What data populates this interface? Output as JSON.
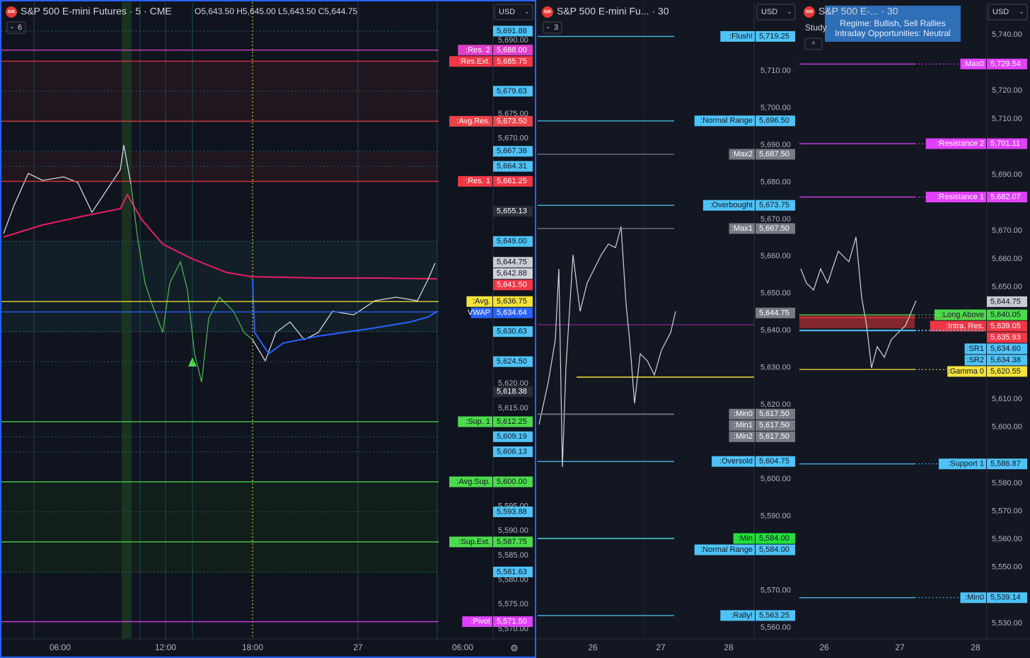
{
  "panels": [
    {
      "badge": "500",
      "title": "S&P 500 E-mini Futures · 5 · CME",
      "ohlc": "O5,643.50 H5,645.00 L5,643.50 C5,644.75",
      "currency": "USD",
      "collapse": "6",
      "axis_ticks": [
        "5,690.00",
        "5,675.00",
        "5,670.00",
        "5,620.00",
        "5,615.00",
        "5,595.00",
        "5,590.00",
        "5,585.00",
        "5,580.00",
        "5,575.00",
        "5,570.00"
      ],
      "levels": [
        {
          "price": "5,691.88",
          "color": "#4fc3f7"
        },
        {
          "tag": ":Res. 2",
          "price": "5,688.00",
          "color": "#e040c8"
        },
        {
          "tag": ":Res.Ext.",
          "price": "5,685.75",
          "color": "#f23645"
        },
        {
          "price": "5,679.63",
          "color": "#4fc3f7"
        },
        {
          "tag": ":Avg.Res.",
          "price": "5,673.50",
          "color": "#e8434a"
        },
        {
          "price": "5,667.38",
          "color": "#4fc3f7"
        },
        {
          "price": "5,664.31",
          "color": "#4fc3f7"
        },
        {
          "tag": ":Res. 1",
          "price": "5,661.25",
          "color": "#f23645"
        },
        {
          "price": "5,655.13",
          "color": "#2a2e39"
        },
        {
          "price": "5,649.00",
          "color": "#4fc3f7"
        },
        {
          "price": "5,644.75",
          "color": "#c8cbd2"
        },
        {
          "price": "5,642.88",
          "color": "#d1d4dc"
        },
        {
          "price": "5,641.50",
          "color": "#f23645"
        },
        {
          "tag": ":Avg.",
          "price": "5,636.75",
          "color": "#f5e33b"
        },
        {
          "tag": "VWAP",
          "price": "5,634.64",
          "color": "#2962ff"
        },
        {
          "price": "5,630.63",
          "color": "#4fc3f7"
        },
        {
          "price": "5,624.50",
          "color": "#4fc3f7"
        },
        {
          "price": "5,618.38",
          "color": "#2a2e39"
        },
        {
          "tag": ":Sup. 1",
          "price": "5,612.25",
          "color": "#4cdb4c"
        },
        {
          "price": "5,609.19",
          "color": "#4fc3f7"
        },
        {
          "price": "5,606.13",
          "color": "#4fc3f7"
        },
        {
          "tag": ":Avg.Sup.",
          "price": "5,600.00",
          "color": "#4cdb4c"
        },
        {
          "price": "5,593.88",
          "color": "#4fc3f7"
        },
        {
          "tag": ":Sup.Ext.",
          "price": "5,587.75",
          "color": "#4cdb4c"
        },
        {
          "price": "5,581.63",
          "color": "#4fc3f7"
        },
        {
          "tag": ":Pivot",
          "price": "5,571.50",
          "color": "#e040fb"
        }
      ],
      "time_labels": [
        "06:00",
        "12:00",
        "18:00",
        "27",
        "06:00"
      ]
    },
    {
      "badge": "500",
      "title": "S&P 500 E-mini Fu... · 30",
      "currency": "USD",
      "collapse": "3",
      "axis_ticks": [
        "5,710.00",
        "5,700.00",
        "5,690.00",
        "5,680.00",
        "5,670.00",
        "5,660.00",
        "5,650.00",
        "5,640.00",
        "5,630.00",
        "5,620.00",
        "5,600.00",
        "5,590.00",
        "5,570.00",
        "5,560.00"
      ],
      "levels": [
        {
          "tag": ":Flush!",
          "price": "5,719.25",
          "color": "#4fc3f7"
        },
        {
          "tag": ":Normal Range",
          "price": "5,696.50",
          "color": "#4fc3f7"
        },
        {
          "tag": ":Max2",
          "price": "5,687.50",
          "color": "#787b86"
        },
        {
          "tag": ":Overbought",
          "price": "5,673.75",
          "color": "#4fc3f7"
        },
        {
          "tag": ":Max1",
          "price": "5,667.50",
          "color": "#787b86"
        },
        {
          "price": "5,644.75",
          "color": "#787b86"
        },
        {
          "tag": ":Min0",
          "price": "5,617.50",
          "color": "#787b86"
        },
        {
          "tag": ":Min1",
          "price": "5,617.50",
          "color": "#787b86"
        },
        {
          "tag": ":Min2",
          "price": "5,617.50",
          "color": "#787b86"
        },
        {
          "tag": ":Oversold",
          "price": "5,604.75",
          "color": "#4fc3f7"
        },
        {
          "tag": ":Min",
          "price": "5,584.00",
          "color": "#22e03a"
        },
        {
          "tag": ":Normal Range",
          "price": "5,584.00",
          "color": "#4fc3f7"
        },
        {
          "tag": ":Rally!",
          "price": "5,563.25",
          "color": "#4fc3f7"
        }
      ],
      "time_labels": [
        "26",
        "27",
        "28"
      ]
    },
    {
      "badge": "500",
      "title": "S&P 500 E-...  · 30",
      "currency": "USD",
      "study": "Study",
      "tooltip": [
        "Regime: Bullish, Sell Rallies",
        "Intraday Opportunities: Neutral"
      ],
      "axis_ticks": [
        "5,740.00",
        "5,720.00",
        "5,710.00",
        "5,690.00",
        "5,670.00",
        "5,660.00",
        "5,650.00",
        "5,610.00",
        "5,600.00",
        "5,580.00",
        "5,570.00",
        "5,560.00",
        "5,550.00",
        "5,530.00"
      ],
      "levels": [
        {
          "tag": ":Max0",
          "price": "5,729.54",
          "color": "#e040fb"
        },
        {
          "tag": ":Resistance 2",
          "price": "5,701.11",
          "color": "#e040fb"
        },
        {
          "tag": ":Resistance 1",
          "price": "5,682.07",
          "color": "#e040fb"
        },
        {
          "price": "5,644.75",
          "color": "#c8cbd2"
        },
        {
          "tag": ":Long Above",
          "price": "5,640.05",
          "color": "#4cdb4c"
        },
        {
          "tag": ":Intra. Res.",
          "price": "5,639.05",
          "color": "#f23645"
        },
        {
          "price": "5,635.93",
          "color": "#f23645"
        },
        {
          "tag": ":SR1",
          "price": "5,634.60",
          "color": "#4fc3f7"
        },
        {
          "tag": ":SR2",
          "price": "5,634.38",
          "color": "#4fc3f7"
        },
        {
          "tag": ":Gamma 0",
          "price": "5,620.55",
          "color": "#f5e33b"
        },
        {
          "tag": ":Support 1",
          "price": "5,586.87",
          "color": "#4fc3f7"
        },
        {
          "tag": ":Min0",
          "price": "5,539.14",
          "color": "#4fc3f7"
        }
      ],
      "time_labels": [
        "26",
        "27",
        "28"
      ]
    }
  ]
}
